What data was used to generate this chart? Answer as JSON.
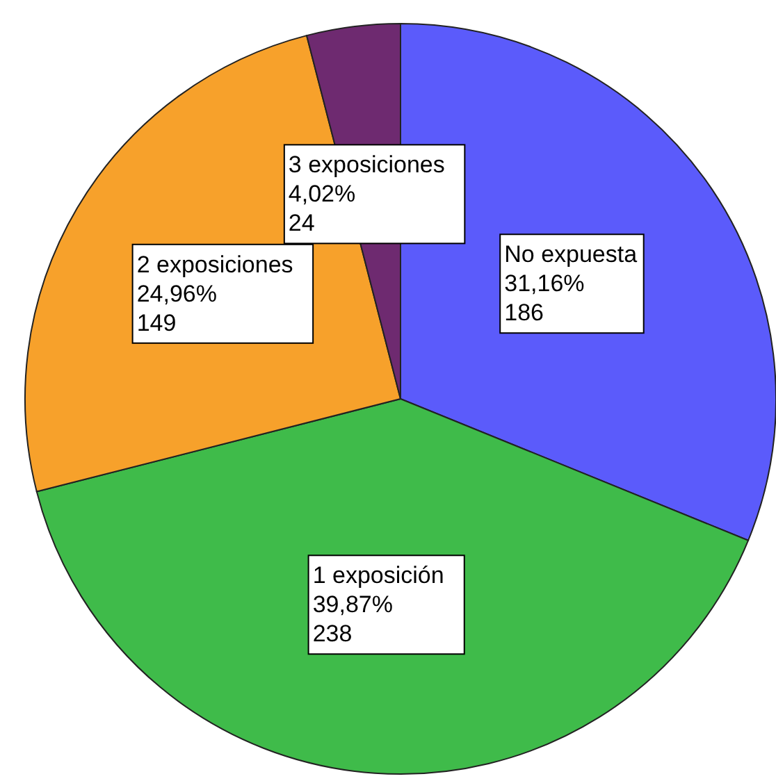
{
  "chart_data": {
    "type": "pie",
    "categories": [
      "No expuesta",
      "1 exposición",
      "2 exposiciones",
      "3 exposiciones"
    ],
    "values": [
      31.16,
      39.87,
      24.96,
      4.02
    ],
    "value_labels": [
      "31,16%\n186",
      "39,87%\n238",
      "24,96%\n149",
      "4,02%\n24"
    ],
    "colors": [
      "#5b5bfb",
      "#3fbb4a",
      "#f7a12b",
      "#6e2a70"
    ]
  }
}
